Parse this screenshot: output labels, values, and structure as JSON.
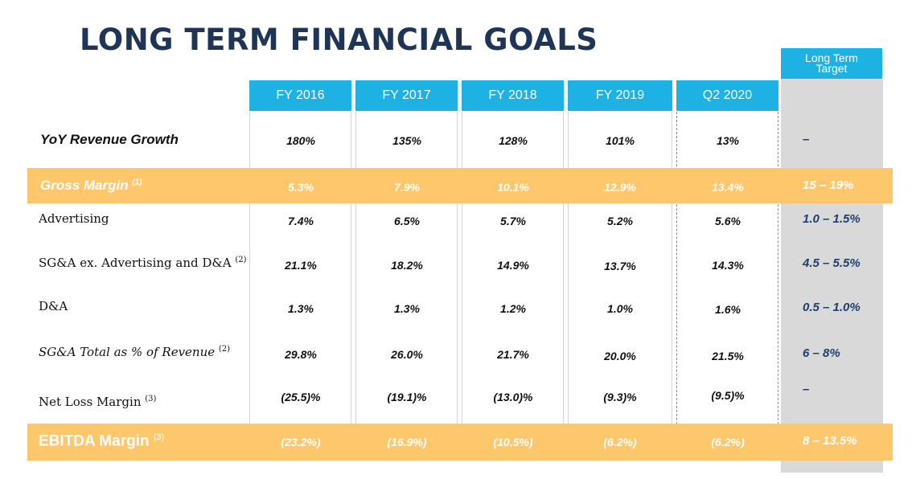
{
  "title": "LONG TERM FINANCIAL GOALS",
  "columns": [
    "FY 2016",
    "FY 2017",
    "FY 2018",
    "FY 2019",
    "Q2 2020"
  ],
  "target_header": {
    "line1": "Long Term",
    "line2": "Target"
  },
  "rows": [
    {
      "label": "YoY Revenue Growth",
      "sup": "",
      "values": [
        "180%",
        "135%",
        "128%",
        "101%",
        "13%"
      ],
      "target": "–"
    },
    {
      "label": "Gross Margin",
      "sup": "(1)",
      "values": [
        "5.3%",
        "7.9%",
        "10.1%",
        "12.9%",
        "13.4%"
      ],
      "target": "15 – 19%"
    },
    {
      "label": "Advertising",
      "sup": "",
      "values": [
        "7.4%",
        "6.5%",
        "5.7%",
        "5.2%",
        "5.6%"
      ],
      "target": "1.0 – 1.5%"
    },
    {
      "label": "SG&A ex. Advertising and D&A",
      "sup": "(2)",
      "values": [
        "21.1%",
        "18.2%",
        "14.9%",
        "13.7%",
        "14.3%"
      ],
      "target": "4.5 – 5.5%"
    },
    {
      "label": "D&A",
      "sup": "",
      "values": [
        "1.3%",
        "1.3%",
        "1.2%",
        "1.0%",
        "1.6%"
      ],
      "target": "0.5 – 1.0%"
    },
    {
      "label": "SG&A Total as % of Revenue",
      "sup": "(2)",
      "values": [
        "29.8%",
        "26.0%",
        "21.7%",
        "20.0%",
        "21.5%"
      ],
      "target": "6 – 8%"
    },
    {
      "label": "Net Loss Margin",
      "sup": "(3)",
      "values": [
        "(25.5)%",
        "(19.1)%",
        "(13.0)%",
        "(9.3)%",
        "(9.5)%"
      ],
      "target": "–"
    },
    {
      "label": "EBITDA Margin",
      "sup": "(3)",
      "values": [
        "(23.2%)",
        "(16.9%)",
        "(10.5%)",
        "(6.2%)",
        "(6.2%)"
      ],
      "target": "8 – 13.5%"
    }
  ],
  "colors": {
    "title": "#1e3557",
    "header": "#1eb1e3",
    "band": "#ffc76b",
    "target_column": "#d9d9d9",
    "target_text": "#1e3f6e"
  }
}
